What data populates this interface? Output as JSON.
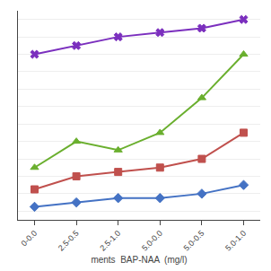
{
  "chart_data": {
    "type": "line",
    "categories": [
      "0-0.0",
      "2.5-0.5",
      "2.5-1.0",
      "5.0-0.0",
      "5.0-0.5",
      "5.0-1.0"
    ],
    "series": [
      {
        "color": "#7B2FBE",
        "marker": "x",
        "values": [
          22,
          23,
          24,
          24.5,
          25,
          26
        ]
      },
      {
        "color": "#6AAF2E",
        "marker": "triangle",
        "values": [
          9,
          12,
          11,
          13,
          17,
          22
        ]
      },
      {
        "color": "#C0504D",
        "marker": "square",
        "values": [
          6.5,
          8,
          8.5,
          9,
          10,
          13
        ]
      },
      {
        "color": "#4472C4",
        "marker": "diamond",
        "values": [
          4.5,
          5,
          5.5,
          5.5,
          6,
          7
        ]
      }
    ],
    "xlabel": "ments  BAP-NAA  (mg/l)",
    "ylim": [
      3,
      27
    ],
    "yticks": [
      4,
      6,
      8,
      10,
      12,
      14,
      16,
      18,
      20,
      22,
      24,
      26
    ],
    "grid": true,
    "tick_labels": "x"
  }
}
